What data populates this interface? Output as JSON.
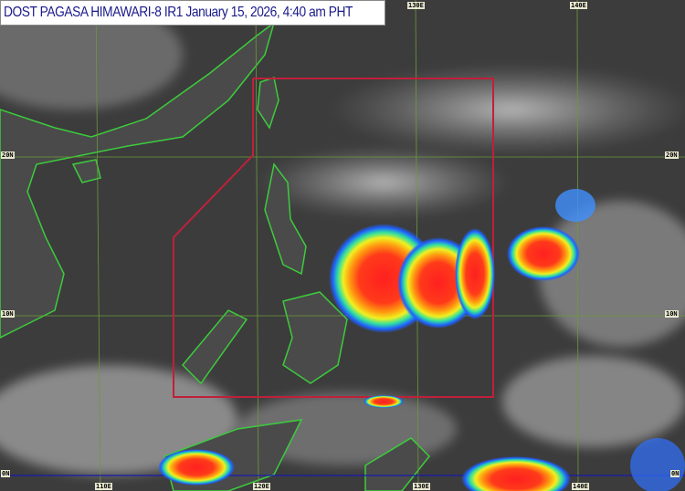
{
  "title": "DOST PAGASA HIMAWARI-8 IR1 January 15, 2026, 4:40 am PHT",
  "grid": {
    "longitude_labels_top": [
      "130E",
      "140E"
    ],
    "longitude_labels_bottom": [
      "110E",
      "120E",
      "130E",
      "140E"
    ],
    "latitude_labels_left": [
      "20N",
      "10N",
      "0N"
    ],
    "latitude_labels_right": [
      "20N",
      "10N",
      "0N"
    ],
    "gridline_color": "#6a9a3a",
    "equator_color": "#1a1ab0"
  },
  "overlay": {
    "par_boundary_color": "#c0203a",
    "coastline_color": "#3ccc3c"
  }
}
